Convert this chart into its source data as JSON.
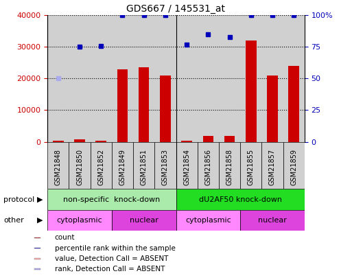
{
  "title": "GDS667 / 145531_at",
  "samples": [
    "GSM21848",
    "GSM21850",
    "GSM21852",
    "GSM21849",
    "GSM21851",
    "GSM21853",
    "GSM21854",
    "GSM21856",
    "GSM21858",
    "GSM21855",
    "GSM21857",
    "GSM21859"
  ],
  "bar_values": [
    400,
    800,
    400,
    23000,
    23500,
    21000,
    400,
    1800,
    1800,
    32000,
    21000,
    24000
  ],
  "bar_absent": [
    false,
    false,
    false,
    false,
    false,
    false,
    false,
    false,
    false,
    false,
    false,
    false
  ],
  "dot_values_pct": [
    50,
    75,
    76,
    100,
    100,
    100,
    77,
    85,
    83,
    100,
    100,
    100
  ],
  "dot_absent": [
    true,
    false,
    false,
    false,
    false,
    false,
    false,
    false,
    false,
    false,
    false,
    false
  ],
  "ylim_left": [
    0,
    40000
  ],
  "ylim_right": [
    0,
    100
  ],
  "yticks_left": [
    0,
    10000,
    20000,
    30000,
    40000
  ],
  "ytick_labels_left": [
    "0",
    "10000",
    "20000",
    "30000",
    "40000"
  ],
  "yticks_right": [
    0,
    25,
    50,
    75,
    100
  ],
  "ytick_labels_right": [
    "0",
    "25",
    "50",
    "75",
    "100%"
  ],
  "protocol_groups": [
    {
      "label": "non-specific  knock-down",
      "start": 0,
      "end": 6,
      "color": "#aaeaaa"
    },
    {
      "label": "dU2AF50 knock-down",
      "start": 6,
      "end": 12,
      "color": "#22dd22"
    }
  ],
  "other_groups": [
    {
      "label": "cytoplasmic",
      "start": 0,
      "end": 3,
      "color": "#ff88ff"
    },
    {
      "label": "nuclear",
      "start": 3,
      "end": 6,
      "color": "#dd44dd"
    },
    {
      "label": "cytoplasmic",
      "start": 6,
      "end": 9,
      "color": "#ff88ff"
    },
    {
      "label": "nuclear",
      "start": 9,
      "end": 12,
      "color": "#dd44dd"
    }
  ],
  "bar_color": "#cc0000",
  "bar_absent_color": "#ffaaaa",
  "dot_color": "#0000bb",
  "dot_absent_color": "#aaaaee",
  "col_bg_color": "#d0d0d0",
  "grid_color": "#000000",
  "tick_color_left": "#cc0000",
  "tick_color_right": "#0000bb",
  "legend_items": [
    {
      "label": "count",
      "color": "#cc0000"
    },
    {
      "label": "percentile rank within the sample",
      "color": "#0000bb"
    },
    {
      "label": "value, Detection Call = ABSENT",
      "color": "#ffaaaa"
    },
    {
      "label": "rank, Detection Call = ABSENT",
      "color": "#aaaaee"
    }
  ]
}
